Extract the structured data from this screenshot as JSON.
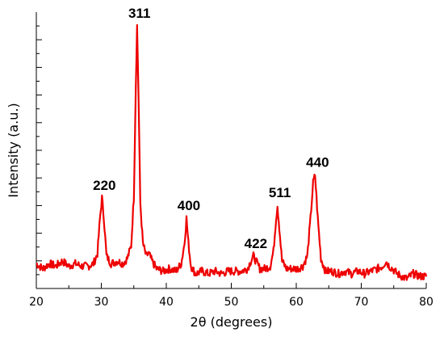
{
  "chart_data": {
    "type": "line",
    "title": "",
    "xlabel": "2θ (degrees)",
    "ylabel": "Intensity (a.u.)",
    "xlim": [
      20,
      80
    ],
    "ylim": [
      0,
      100
    ],
    "x_ticks": [
      "20",
      "30",
      "40",
      "50",
      "60",
      "70",
      "80"
    ],
    "y_tick_labels_shown": false,
    "grid": false,
    "legend": "none",
    "series": [
      {
        "color": "#ee0000",
        "x": [
          20,
          21,
          22,
          23,
          24,
          25,
          26,
          27,
          28,
          28.8,
          29.4,
          29.8,
          30.1,
          30.4,
          30.8,
          31.5,
          32.5,
          33.3,
          34,
          34.6,
          35.0,
          35.3,
          35.5,
          35.7,
          36.0,
          36.4,
          36.9,
          37.3,
          37.8,
          38.5,
          39.5,
          40.5,
          41.5,
          42.3,
          42.8,
          43.1,
          43.4,
          43.8,
          44.5,
          45.5,
          46.5,
          47.5,
          48.5,
          49.5,
          50.5,
          51.5,
          52.5,
          53.0,
          53.4,
          53.8,
          54.4,
          55.2,
          56.0,
          56.5,
          56.9,
          57.1,
          57.4,
          57.8,
          58.5,
          59.3,
          60.2,
          61.0,
          61.7,
          62.2,
          62.6,
          62.9,
          63.3,
          63.8,
          64.5,
          65.5,
          66.5,
          67.5,
          68.5,
          69.5,
          70.5,
          71.5,
          72.5,
          73.3,
          73.8,
          74.3,
          74.8,
          75.5,
          76.2,
          77,
          78,
          79,
          80
        ],
        "y": [
          6,
          4,
          6,
          5,
          7,
          5,
          6,
          5,
          5,
          6,
          10,
          24,
          32,
          24,
          9,
          6,
          7,
          6,
          8,
          13,
          32,
          76,
          100,
          76,
          30,
          14,
          9,
          10,
          7,
          4,
          3,
          4,
          3,
          6,
          14,
          24,
          14,
          5,
          2,
          3,
          2,
          3,
          2,
          3,
          3,
          3,
          4,
          7,
          9,
          7,
          4,
          4,
          5,
          11,
          24,
          29,
          20,
          7,
          4,
          4,
          4,
          5,
          9,
          24,
          38,
          41,
          24,
          8,
          3,
          3,
          2,
          3,
          2,
          3,
          2,
          3,
          4,
          5,
          7,
          5,
          4,
          2,
          1,
          0,
          2,
          1,
          1
        ]
      }
    ],
    "annotations": [
      {
        "text": "220",
        "x": 30.1,
        "y": 32
      },
      {
        "text": "311",
        "x": 35.5,
        "y": 100
      },
      {
        "text": "400",
        "x": 43.1,
        "y": 24
      },
      {
        "text": "422",
        "x": 53.4,
        "y": 9
      },
      {
        "text": "511",
        "x": 57.1,
        "y": 29
      },
      {
        "text": "440",
        "x": 62.9,
        "y": 41
      }
    ]
  }
}
